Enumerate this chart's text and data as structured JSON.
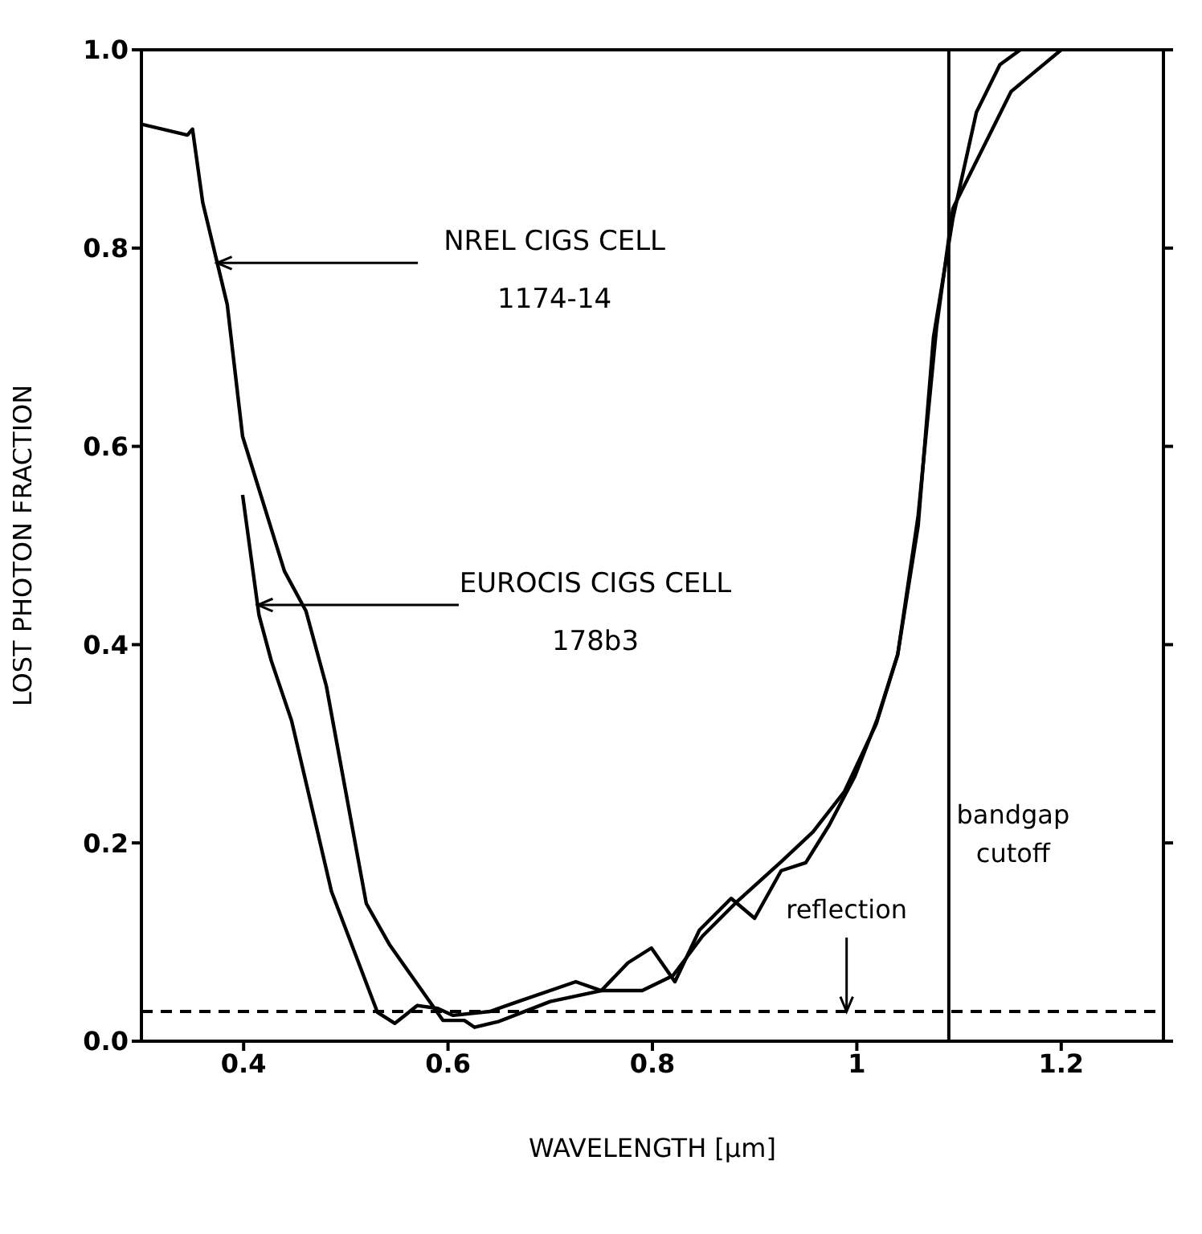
{
  "chart_data": {
    "type": "line",
    "xlabel": "WAVELENGTH [μm]",
    "ylabel": "LOST PHOTON FRACTION",
    "xlim": [
      0.3,
      1.3
    ],
    "xticks": [
      0.4,
      0.6,
      0.8,
      1.0,
      1.2
    ],
    "ylim": [
      0,
      1
    ],
    "yticks": [
      {
        "value": 0,
        "label": "0.0"
      },
      0.2,
      0.4,
      0.6,
      0.8,
      {
        "value": 1,
        "label": "1.0"
      }
    ],
    "marker": "none",
    "line_style": "solid",
    "series": [
      {
        "color": "#000000",
        "x": [
          0.3,
          0.345,
          0.35,
          0.36,
          0.384,
          0.399,
          0.44,
          0.461,
          0.481,
          0.52,
          0.543,
          0.595,
          0.616,
          0.626,
          0.65,
          0.7,
          0.75,
          0.79,
          0.82,
          0.849,
          0.884,
          0.926,
          0.957,
          0.988,
          1.019,
          1.04,
          1.06,
          1.075,
          1.094,
          1.117,
          1.14,
          1.16
        ],
        "values": [
          0.925,
          0.914,
          0.92,
          0.846,
          0.743,
          0.61,
          0.474,
          0.434,
          0.358,
          0.139,
          0.097,
          0.021,
          0.021,
          0.014,
          0.02,
          0.04,
          0.051,
          0.051,
          0.066,
          0.106,
          0.142,
          0.181,
          0.211,
          0.252,
          0.32,
          0.39,
          0.52,
          0.71,
          0.83,
          0.937,
          0.985,
          1.0
        ]
      },
      {
        "color": "#000000",
        "x": [
          0.399,
          0.415,
          0.427,
          0.447,
          0.486,
          0.531,
          0.548,
          0.57,
          0.59,
          0.605,
          0.641,
          0.663,
          0.725,
          0.75,
          0.776,
          0.799,
          0.822,
          0.846,
          0.877,
          0.9,
          0.926,
          0.95,
          0.973,
          0.998,
          1.02,
          1.04,
          1.06,
          1.078,
          1.094,
          1.151,
          1.2
        ],
        "values": [
          0.551,
          0.43,
          0.384,
          0.323,
          0.151,
          0.029,
          0.018,
          0.036,
          0.033,
          0.026,
          0.03,
          0.038,
          0.06,
          0.051,
          0.079,
          0.094,
          0.06,
          0.112,
          0.144,
          0.124,
          0.172,
          0.18,
          0.218,
          0.267,
          0.325,
          0.39,
          0.53,
          0.72,
          0.84,
          0.958,
          1.0
        ]
      }
    ],
    "ref_lines": [
      {
        "axis": "y",
        "value": 0.03,
        "label": "reflection",
        "line_style": "dashed",
        "color": "#000000"
      },
      {
        "axis": "x",
        "value": 1.09,
        "label": "bandgap cutoff",
        "line_style": "solid",
        "color": "#000000"
      }
    ],
    "annotations": [
      {
        "text": "NREL CIGS CELL\n1174-14",
        "x": 0.374,
        "y": 0.785
      },
      {
        "text": "EUROCIS CIGS CELL\n178b3",
        "x": 0.414,
        "y": 0.44
      }
    ]
  }
}
